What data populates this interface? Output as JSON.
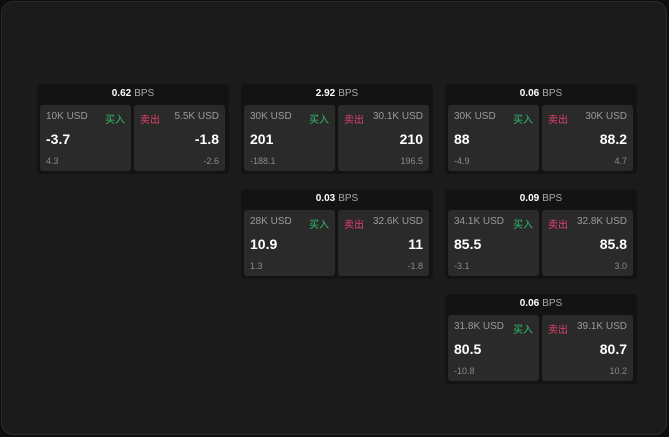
{
  "labels": {
    "buy": "买入",
    "sell": "卖出",
    "unit": "BPS"
  },
  "colors": {
    "buy": "#2fbf6a",
    "sell": "#e2416a"
  },
  "cards": [
    {
      "spread": "0.62",
      "bid_size": "10K USD",
      "bid": "-3.7",
      "bid_sub": "4.3",
      "ask_size": "5.5K USD",
      "ask": "-1.8",
      "ask_sub": "-2.6"
    },
    {
      "spread": "2.92",
      "bid_size": "30K USD",
      "bid": "201",
      "bid_sub": "-188.1",
      "ask_size": "30.1K USD",
      "ask": "210",
      "ask_sub": "196.5"
    },
    {
      "spread": "0.06",
      "bid_size": "30K USD",
      "bid": "88",
      "bid_sub": "-4.9",
      "ask_size": "30K USD",
      "ask": "88.2",
      "ask_sub": "4.7"
    },
    {
      "spread": "0.03",
      "bid_size": "28K USD",
      "bid": "10.9",
      "bid_sub": "1.3",
      "ask_size": "32.6K USD",
      "ask": "11",
      "ask_sub": "-1.8"
    },
    {
      "spread": "0.09",
      "bid_size": "34.1K USD",
      "bid": "85.5",
      "bid_sub": "-3.1",
      "ask_size": "32.8K USD",
      "ask": "85.8",
      "ask_sub": "3.0"
    },
    {
      "spread": "0.06",
      "bid_size": "31.8K USD",
      "bid": "80.5",
      "bid_sub": "-10.8",
      "ask_size": "39.1K USD",
      "ask": "80.7",
      "ask_sub": "10.2"
    }
  ]
}
